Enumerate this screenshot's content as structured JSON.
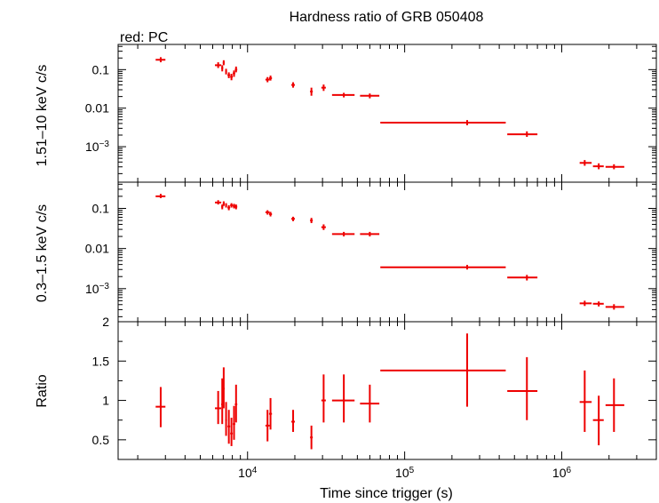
{
  "chart_data": {
    "type": "scatter",
    "title": "Hardness ratio of GRB 050408",
    "legend_note": "red: PC",
    "xlabel": "Time since trigger (s)",
    "x_scale": "log",
    "xlim": [
      1500,
      4000000
    ],
    "x_tick_labels": [
      "10^4",
      "10^5",
      "10^6"
    ],
    "color": "#ee0000",
    "panels": [
      {
        "id": "hard",
        "ylabel": "1.51–10 keV c/s",
        "y_scale": "log",
        "ylim": [
          0.00012,
          0.45
        ],
        "y_tick_labels": [
          "0.1",
          "0.01",
          "10^-3"
        ],
        "points": [
          {
            "x": 2800,
            "xlo": 2600,
            "xhi": 3000,
            "y": 0.18,
            "ylo": 0.155,
            "yhi": 0.21
          },
          {
            "x": 6500,
            "xlo": 6200,
            "xhi": 6800,
            "y": 0.13,
            "ylo": 0.11,
            "yhi": 0.155
          },
          {
            "x": 6900,
            "xlo": 6800,
            "xhi": 7000,
            "y": 0.11,
            "ylo": 0.09,
            "yhi": 0.13
          },
          {
            "x": 7050,
            "xlo": 6950,
            "xhi": 7150,
            "y": 0.15,
            "ylo": 0.13,
            "yhi": 0.175
          },
          {
            "x": 7300,
            "xlo": 7200,
            "xhi": 7400,
            "y": 0.09,
            "ylo": 0.075,
            "yhi": 0.105
          },
          {
            "x": 7600,
            "xlo": 7450,
            "xhi": 7750,
            "y": 0.072,
            "ylo": 0.06,
            "yhi": 0.085
          },
          {
            "x": 7900,
            "xlo": 7750,
            "xhi": 8050,
            "y": 0.065,
            "ylo": 0.053,
            "yhi": 0.078
          },
          {
            "x": 8200,
            "xlo": 8050,
            "xhi": 8350,
            "y": 0.08,
            "ylo": 0.065,
            "yhi": 0.095
          },
          {
            "x": 8450,
            "xlo": 8300,
            "xhi": 8600,
            "y": 0.1,
            "ylo": 0.085,
            "yhi": 0.12
          },
          {
            "x": 13400,
            "xlo": 13000,
            "xhi": 13800,
            "y": 0.055,
            "ylo": 0.047,
            "yhi": 0.064
          },
          {
            "x": 14000,
            "xlo": 13700,
            "xhi": 14300,
            "y": 0.06,
            "ylo": 0.052,
            "yhi": 0.07
          },
          {
            "x": 19500,
            "xlo": 19000,
            "xhi": 20000,
            "y": 0.04,
            "ylo": 0.034,
            "yhi": 0.047
          },
          {
            "x": 25500,
            "xlo": 25000,
            "xhi": 26000,
            "y": 0.027,
            "ylo": 0.021,
            "yhi": 0.034
          },
          {
            "x": 30500,
            "xlo": 29500,
            "xhi": 31500,
            "y": 0.034,
            "ylo": 0.028,
            "yhi": 0.041
          },
          {
            "x": 41000,
            "xlo": 34500,
            "xhi": 48000,
            "y": 0.022,
            "ylo": 0.019,
            "yhi": 0.025
          },
          {
            "x": 60000,
            "xlo": 52000,
            "xhi": 69000,
            "y": 0.021,
            "ylo": 0.018,
            "yhi": 0.024
          },
          {
            "x": 250000,
            "xlo": 70000,
            "xhi": 440000,
            "y": 0.0042,
            "ylo": 0.0036,
            "yhi": 0.0049
          },
          {
            "x": 600000,
            "xlo": 450000,
            "xhi": 700000,
            "y": 0.0021,
            "ylo": 0.0018,
            "yhi": 0.0025
          },
          {
            "x": 1400000,
            "xlo": 1300000,
            "xhi": 1550000,
            "y": 0.00038,
            "ylo": 0.00032,
            "yhi": 0.00045
          },
          {
            "x": 1720000,
            "xlo": 1580000,
            "xhi": 1850000,
            "y": 0.00031,
            "ylo": 0.00026,
            "yhi": 0.00037
          },
          {
            "x": 2150000,
            "xlo": 1900000,
            "xhi": 2500000,
            "y": 0.0003,
            "ylo": 0.00026,
            "yhi": 0.00035
          }
        ]
      },
      {
        "id": "soft",
        "ylabel": "0.3–1.5 keV c/s",
        "y_scale": "log",
        "ylim": [
          0.00015,
          0.45
        ],
        "y_tick_labels": [
          "0.1",
          "0.01",
          "10^-3"
        ],
        "points": [
          {
            "x": 2800,
            "xlo": 2600,
            "xhi": 3000,
            "y": 0.2,
            "ylo": 0.18,
            "yhi": 0.23
          },
          {
            "x": 6500,
            "xlo": 6200,
            "xhi": 6800,
            "y": 0.14,
            "ylo": 0.125,
            "yhi": 0.16
          },
          {
            "x": 6900,
            "xlo": 6800,
            "xhi": 7000,
            "y": 0.11,
            "ylo": 0.095,
            "yhi": 0.125
          },
          {
            "x": 7050,
            "xlo": 6950,
            "xhi": 7150,
            "y": 0.13,
            "ylo": 0.115,
            "yhi": 0.15
          },
          {
            "x": 7300,
            "xlo": 7200,
            "xhi": 7400,
            "y": 0.12,
            "ylo": 0.105,
            "yhi": 0.135
          },
          {
            "x": 7600,
            "xlo": 7450,
            "xhi": 7750,
            "y": 0.105,
            "ylo": 0.09,
            "yhi": 0.12
          },
          {
            "x": 7900,
            "xlo": 7750,
            "xhi": 8050,
            "y": 0.12,
            "ylo": 0.105,
            "yhi": 0.135
          },
          {
            "x": 8200,
            "xlo": 8050,
            "xhi": 8350,
            "y": 0.115,
            "ylo": 0.1,
            "yhi": 0.13
          },
          {
            "x": 8450,
            "xlo": 8300,
            "xhi": 8600,
            "y": 0.11,
            "ylo": 0.095,
            "yhi": 0.125
          },
          {
            "x": 13400,
            "xlo": 13000,
            "xhi": 13800,
            "y": 0.08,
            "ylo": 0.07,
            "yhi": 0.09
          },
          {
            "x": 14000,
            "xlo": 13700,
            "xhi": 14300,
            "y": 0.072,
            "ylo": 0.063,
            "yhi": 0.082
          },
          {
            "x": 19500,
            "xlo": 19000,
            "xhi": 20000,
            "y": 0.055,
            "ylo": 0.048,
            "yhi": 0.062
          },
          {
            "x": 25500,
            "xlo": 25000,
            "xhi": 26000,
            "y": 0.05,
            "ylo": 0.043,
            "yhi": 0.058
          },
          {
            "x": 30500,
            "xlo": 29500,
            "xhi": 31500,
            "y": 0.034,
            "ylo": 0.029,
            "yhi": 0.04
          },
          {
            "x": 41000,
            "xlo": 34500,
            "xhi": 48000,
            "y": 0.023,
            "ylo": 0.02,
            "yhi": 0.026
          },
          {
            "x": 60000,
            "xlo": 52000,
            "xhi": 69000,
            "y": 0.023,
            "ylo": 0.02,
            "yhi": 0.026
          },
          {
            "x": 250000,
            "xlo": 70000,
            "xhi": 440000,
            "y": 0.0034,
            "ylo": 0.003,
            "yhi": 0.0039
          },
          {
            "x": 600000,
            "xlo": 450000,
            "xhi": 700000,
            "y": 0.0019,
            "ylo": 0.0016,
            "yhi": 0.0022
          },
          {
            "x": 1400000,
            "xlo": 1300000,
            "xhi": 1550000,
            "y": 0.00043,
            "ylo": 0.00037,
            "yhi": 0.0005
          },
          {
            "x": 1720000,
            "xlo": 1580000,
            "xhi": 1850000,
            "y": 0.00042,
            "ylo": 0.00036,
            "yhi": 0.00048
          },
          {
            "x": 2150000,
            "xlo": 1900000,
            "xhi": 2500000,
            "y": 0.00035,
            "ylo": 0.0003,
            "yhi": 0.00041
          }
        ]
      },
      {
        "id": "ratio",
        "ylabel": "Ratio",
        "y_scale": "linear",
        "ylim": [
          0.25,
          2
        ],
        "y_tick_labels": [
          "2",
          "1.5",
          "1",
          "0.5"
        ],
        "y_tick_values": [
          2,
          1.5,
          1,
          0.5
        ],
        "points": [
          {
            "x": 2800,
            "xlo": 2600,
            "xhi": 3000,
            "y": 0.92,
            "ylo": 0.66,
            "yhi": 1.17
          },
          {
            "x": 6500,
            "xlo": 6200,
            "xhi": 6800,
            "y": 0.9,
            "ylo": 0.7,
            "yhi": 1.12
          },
          {
            "x": 6900,
            "xlo": 6800,
            "xhi": 7000,
            "y": 0.95,
            "ylo": 0.7,
            "yhi": 1.28
          },
          {
            "x": 7050,
            "xlo": 6950,
            "xhi": 7150,
            "y": 1.15,
            "ylo": 0.9,
            "yhi": 1.42
          },
          {
            "x": 7300,
            "xlo": 7200,
            "xhi": 7400,
            "y": 0.75,
            "ylo": 0.55,
            "yhi": 0.98
          },
          {
            "x": 7600,
            "xlo": 7450,
            "xhi": 7750,
            "y": 0.67,
            "ylo": 0.45,
            "yhi": 0.88
          },
          {
            "x": 7900,
            "xlo": 7750,
            "xhi": 8050,
            "y": 0.58,
            "ylo": 0.42,
            "yhi": 0.78
          },
          {
            "x": 8200,
            "xlo": 8050,
            "xhi": 8350,
            "y": 0.7,
            "ylo": 0.5,
            "yhi": 0.93
          },
          {
            "x": 8450,
            "xlo": 8300,
            "xhi": 8600,
            "y": 0.95,
            "ylo": 0.72,
            "yhi": 1.2
          },
          {
            "x": 13400,
            "xlo": 13000,
            "xhi": 13800,
            "y": 0.68,
            "ylo": 0.48,
            "yhi": 0.88
          },
          {
            "x": 14000,
            "xlo": 13700,
            "xhi": 14300,
            "y": 0.83,
            "ylo": 0.63,
            "yhi": 1.03
          },
          {
            "x": 19500,
            "xlo": 19000,
            "xhi": 20000,
            "y": 0.73,
            "ylo": 0.6,
            "yhi": 0.88
          },
          {
            "x": 25500,
            "xlo": 25000,
            "xhi": 26000,
            "y": 0.53,
            "ylo": 0.38,
            "yhi": 0.68
          },
          {
            "x": 30500,
            "xlo": 29500,
            "xhi": 31500,
            "y": 1.0,
            "ylo": 0.72,
            "yhi": 1.33
          },
          {
            "x": 41000,
            "xlo": 34500,
            "xhi": 48000,
            "y": 1.0,
            "ylo": 0.72,
            "yhi": 1.33
          },
          {
            "x": 60000,
            "xlo": 52000,
            "xhi": 69000,
            "y": 0.96,
            "ylo": 0.72,
            "yhi": 1.2
          },
          {
            "x": 250000,
            "xlo": 70000,
            "xhi": 440000,
            "y": 1.38,
            "ylo": 0.92,
            "yhi": 1.85
          },
          {
            "x": 600000,
            "xlo": 450000,
            "xhi": 700000,
            "y": 1.12,
            "ylo": 0.75,
            "yhi": 1.55
          },
          {
            "x": 1400000,
            "xlo": 1300000,
            "xhi": 1550000,
            "y": 0.98,
            "ylo": 0.6,
            "yhi": 1.38
          },
          {
            "x": 1720000,
            "xlo": 1580000,
            "xhi": 1850000,
            "y": 0.75,
            "ylo": 0.43,
            "yhi": 1.06
          },
          {
            "x": 2150000,
            "xlo": 1900000,
            "xhi": 2500000,
            "y": 0.94,
            "ylo": 0.6,
            "yhi": 1.28
          }
        ]
      }
    ]
  }
}
